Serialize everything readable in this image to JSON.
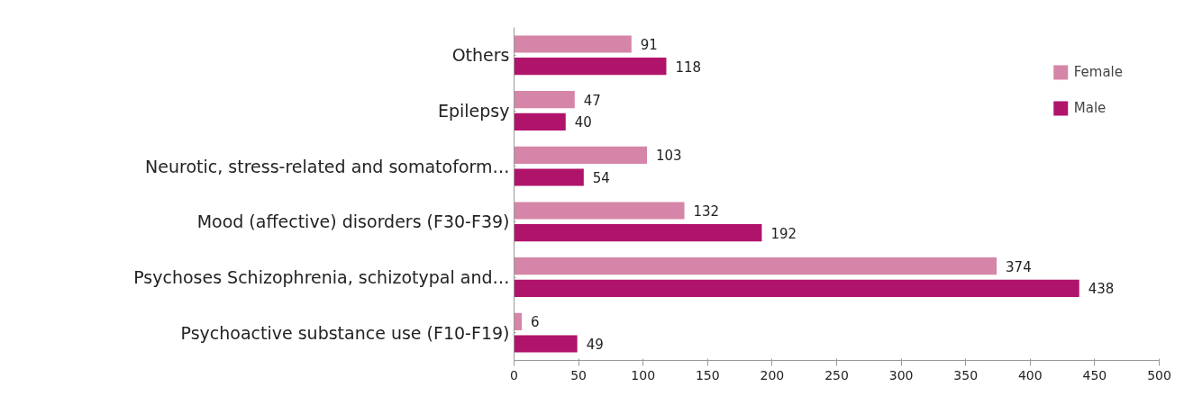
{
  "chart_data": {
    "type": "bar",
    "orientation": "horizontal",
    "categories": [
      "Others",
      "Epilepsy",
      "Neurotic, stress-related and somatoform…",
      "Mood (affective) disorders (F30-F39)",
      "Psychoses Schizophrenia, schizotypal and…",
      "Psychoactive substance use (F10-F19)"
    ],
    "series": [
      {
        "name": "Female",
        "color": "#d585a8",
        "values": [
          91,
          47,
          103,
          132,
          374,
          6
        ]
      },
      {
        "name": "Male",
        "color": "#b0136a",
        "values": [
          118,
          40,
          54,
          192,
          438,
          49
        ]
      }
    ],
    "xlim": [
      0,
      500
    ],
    "xticks": [
      0,
      50,
      100,
      150,
      200,
      250,
      300,
      350,
      400,
      450,
      500
    ],
    "data_labels": true,
    "legend": "top right",
    "grid": false
  }
}
